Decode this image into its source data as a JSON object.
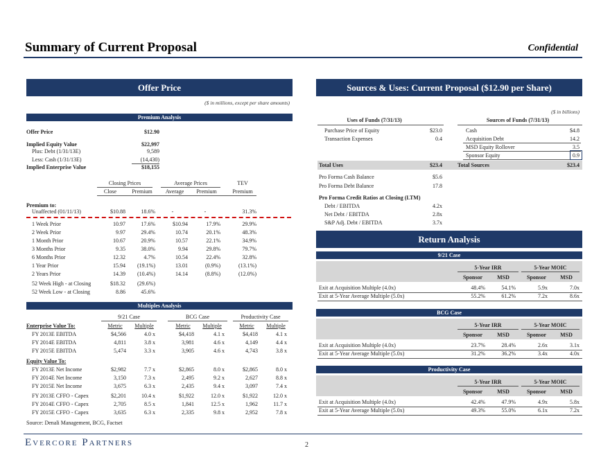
{
  "header": {
    "title": "Summary of Current Proposal",
    "confidential": "Confidential"
  },
  "left": {
    "banner": "Offer Price",
    "note": "($ in millions, except per share amounts)",
    "premium_title": "Premium Analysis",
    "offer": [
      {
        "label": "Offer Price",
        "value": "$12.90",
        "bold": true
      },
      {
        "label": "Implied Equity Value",
        "value": "$22,997",
        "bold": true
      },
      {
        "label": "Plus: Debt (1/31/13E)",
        "value": "9,589",
        "bold": false
      },
      {
        "label": "Less: Cash (1/31/13E)",
        "value": "(14,430)",
        "bold": false
      },
      {
        "label": "Implied Enterprise Value",
        "value": "$18,155",
        "bold": true
      }
    ],
    "prem_hdr": {
      "closing": "Closing Prices",
      "average": "Average Prices",
      "tev": "TEV",
      "close": "Close",
      "premium": "Premium",
      "avg": "Average",
      "premium2": "Premium",
      "premium3": "Premium"
    },
    "premium_to": "Premium to:",
    "prem_rows": [
      [
        "Unaffected (01/11/13)",
        "$10.88",
        "18.6%",
        "-",
        "-",
        "31.3%"
      ],
      [
        "1 Week Prior",
        "10.97",
        "17.6%",
        "$10.94",
        "17.9%",
        "29.9%"
      ],
      [
        "2 Week Prior",
        "9.97",
        "29.4%",
        "10.74",
        "20.1%",
        "48.3%"
      ],
      [
        "1 Month Prior",
        "10.67",
        "20.9%",
        "10.57",
        "22.1%",
        "34.9%"
      ],
      [
        "3 Months Prior",
        "9.35",
        "38.0%",
        "9.94",
        "29.8%",
        "79.7%"
      ],
      [
        "6 Months Prior",
        "12.32",
        "4.7%",
        "10.54",
        "22.4%",
        "32.8%"
      ],
      [
        "1 Year Prior",
        "15.94",
        "(19.1%)",
        "13.01",
        "(0.9%)",
        "(13.1%)"
      ],
      [
        "2 Years Prior",
        "14.39",
        "(10.4%)",
        "14.14",
        "(8.8%)",
        "(12.0%)"
      ],
      [
        "52 Week High - at Closing",
        "$18.32",
        "(29.6%)",
        "",
        "",
        ""
      ],
      [
        "52 Week Low - at Closing",
        "8.86",
        "45.6%",
        "",
        "",
        ""
      ]
    ],
    "mult_title": "Multiples Analysis",
    "mult_hdr": {
      "c1": "9/21 Case",
      "c2": "BCG Case",
      "c3": "Productivity Case",
      "ev": "Enterprise Value To:",
      "eq": "Equity Value To:",
      "metric": "Metric",
      "multiple": "Multiple"
    },
    "ev_rows": [
      [
        "FY 2013E EBITDA",
        "$4,566",
        "4.0 x",
        "$4,418",
        "4.1 x",
        "$4,418",
        "4.1 x"
      ],
      [
        "FY 2014E EBITDA",
        "4,811",
        "3.8 x",
        "3,981",
        "4.6 x",
        "4,149",
        "4.4 x"
      ],
      [
        "FY 2015E EBITDA",
        "5,474",
        "3.3 x",
        "3,905",
        "4.6 x",
        "4,743",
        "3.8 x"
      ]
    ],
    "eq_rows": [
      [
        "FY 2013E Net Income",
        "$2,982",
        "7.7 x",
        "$2,865",
        "8.0 x",
        "$2,865",
        "8.0 x"
      ],
      [
        "FY 2014E Net Income",
        "3,150",
        "7.3 x",
        "2,495",
        "9.2 x",
        "2,627",
        "8.8 x"
      ],
      [
        "FY 2015E Net Income",
        "3,675",
        "6.3 x",
        "2,435",
        "9.4 x",
        "3,097",
        "7.4 x"
      ],
      [
        "FY 2013E CFFO - Capex",
        "$2,201",
        "10.4 x",
        "$1,922",
        "12.0 x",
        "$1,922",
        "12.0 x"
      ],
      [
        "FY 2014E CFFO - Capex",
        "2,705",
        "8.5 x",
        "1,841",
        "12.5 x",
        "1,962",
        "11.7 x"
      ],
      [
        "FY 2015E CFFO - Capex",
        "3,635",
        "6.3 x",
        "2,335",
        "9.8 x",
        "2,952",
        "7.8 x"
      ]
    ],
    "source": "Source: Denali Management, BCG, Factset"
  },
  "right": {
    "banner": "Sources & Uses: Current Proposal ($12.90 per Share)",
    "note": "($ in billions)",
    "uses_title": "Uses of Funds (7/31/13)",
    "sources_title": "Sources of Funds (7/31/13)",
    "uses": [
      [
        "Purchase Price of Equity",
        "$23.0"
      ],
      [
        "Transaction Expenses",
        "0.4"
      ]
    ],
    "sources": [
      [
        "Cash",
        "$4.8"
      ],
      [
        "Acquisition Debt",
        "14.2"
      ],
      [
        "MSD Equity Rollover",
        "3.5"
      ],
      [
        "Sponsor Equity",
        "0.9"
      ]
    ],
    "total_uses": [
      "Total Uses",
      "$23.4"
    ],
    "total_sources": [
      "Total Sources",
      "$23.4"
    ],
    "pro_forma": [
      [
        "Pro Forma Cash Balance",
        "$5.6"
      ],
      [
        "Pro Forma Debt Balance",
        "17.8"
      ]
    ],
    "ratios_title": "Pro Forma Credit Ratios at Closing (LTM)",
    "ratios": [
      [
        "Debt / EBITDA",
        "4.2x"
      ],
      [
        "Net Debt / EBITDA",
        "2.8x"
      ],
      [
        "S&P Adj. Debt / EBITDA",
        "3.7x"
      ]
    ],
    "return_banner": "Return Analysis",
    "irr": "5-Year IRR",
    "moic": "5-Year MOIC",
    "sponsor": "Sponsor",
    "msd": "MSD",
    "cases": [
      {
        "title": "9/21 Case",
        "rows": [
          [
            "Exit at Acquisition Multiple (4.0x)",
            "48.4%",
            "54.1%",
            "5.9x",
            "7.0x"
          ],
          [
            "Exit at 5-Year Average Multiple (5.0x)",
            "55.2%",
            "61.2%",
            "7.2x",
            "8.6x"
          ]
        ]
      },
      {
        "title": "BCG Case",
        "rows": [
          [
            "Exit at Acquisition Multiple (4.0x)",
            "23.7%",
            "28.4%",
            "2.6x",
            "3.1x"
          ],
          [
            "Exit at 5-Year Average Multiple (5.0x)",
            "31.2%",
            "36.2%",
            "3.4x",
            "4.0x"
          ]
        ]
      },
      {
        "title": "Productivity Case",
        "rows": [
          [
            "Exit at Acquisition Multiple (4.0x)",
            "42.4%",
            "47.9%",
            "4.9x",
            "5.8x"
          ],
          [
            "Exit at 5-Year Average Multiple (5.0x)",
            "49.3%",
            "55.0%",
            "6.1x",
            "7.2x"
          ]
        ]
      }
    ]
  },
  "footer": {
    "logo": "Evercore Partners",
    "page": "2"
  }
}
